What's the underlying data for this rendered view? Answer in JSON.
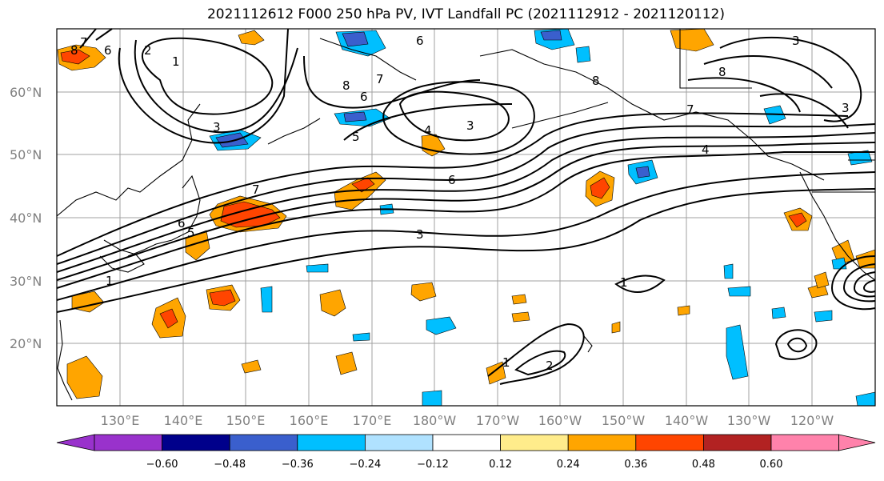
{
  "title": "2021112612 F000 250 hPa PV, IVT Landfall PC (2021112912 - 2021120112)",
  "map": {
    "lat_labels": [
      "60°N",
      "50°N",
      "40°N",
      "30°N",
      "20°N"
    ],
    "lon_labels": [
      "130°E",
      "140°E",
      "150°E",
      "160°E",
      "170°E",
      "180°W",
      "170°W",
      "160°W",
      "150°W",
      "140°W",
      "130°W",
      "120°W"
    ],
    "contour_labels": [
      "6",
      "2",
      "1",
      "8",
      "7",
      "3",
      "8",
      "6",
      "7",
      "6",
      "5",
      "4",
      "3",
      "6",
      "8",
      "7",
      "8",
      "4",
      "3",
      "3",
      "7",
      "5",
      "6",
      "3",
      "1",
      "1",
      "2",
      "1"
    ]
  },
  "colorbar": {
    "ticks": [
      "−0.60",
      "−0.48",
      "−0.36",
      "−0.24",
      "−0.12",
      "0.12",
      "0.24",
      "0.36",
      "0.48",
      "0.60"
    ],
    "colors": [
      "#9932cc",
      "#00008b",
      "#3a5fcd",
      "#00bfff",
      "#b0e2ff",
      "#ffffff",
      "#ffec8b",
      "#ffa500",
      "#ff4500",
      "#b22222",
      "#ff82ab"
    ]
  }
}
